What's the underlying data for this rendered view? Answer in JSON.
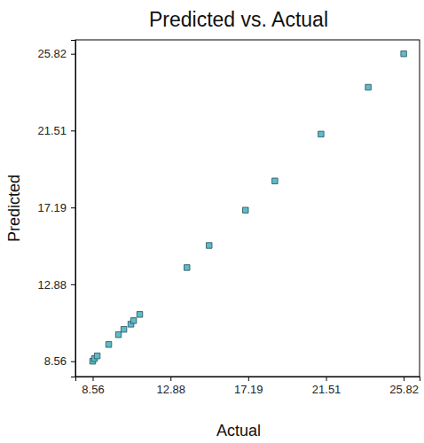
{
  "chart_data": {
    "type": "scatter",
    "title": "Predicted vs. Actual",
    "x_label": "Actual",
    "y_label": "Predicted",
    "x": [
      8.56,
      8.66,
      8.81,
      9.45,
      9.99,
      10.29,
      10.68,
      10.83,
      11.17,
      13.79,
      15.02,
      17.04,
      18.67,
      21.23,
      23.85,
      25.82
    ],
    "values": [
      8.56,
      8.71,
      8.86,
      9.5,
      10.05,
      10.35,
      10.64,
      10.84,
      11.19,
      13.82,
      15.06,
      17.04,
      18.68,
      21.31,
      23.94,
      25.82
    ],
    "color": "#5cbcc9",
    "marker": "square",
    "xlim": [
      7.6,
      26.7
    ],
    "ylim": [
      7.7,
      26.6
    ],
    "xticks": [
      8.56,
      12.88,
      17.19,
      21.51,
      25.82
    ],
    "yticks": [
      8.56,
      12.88,
      17.19,
      21.51,
      25.82
    ],
    "grid": false
  }
}
